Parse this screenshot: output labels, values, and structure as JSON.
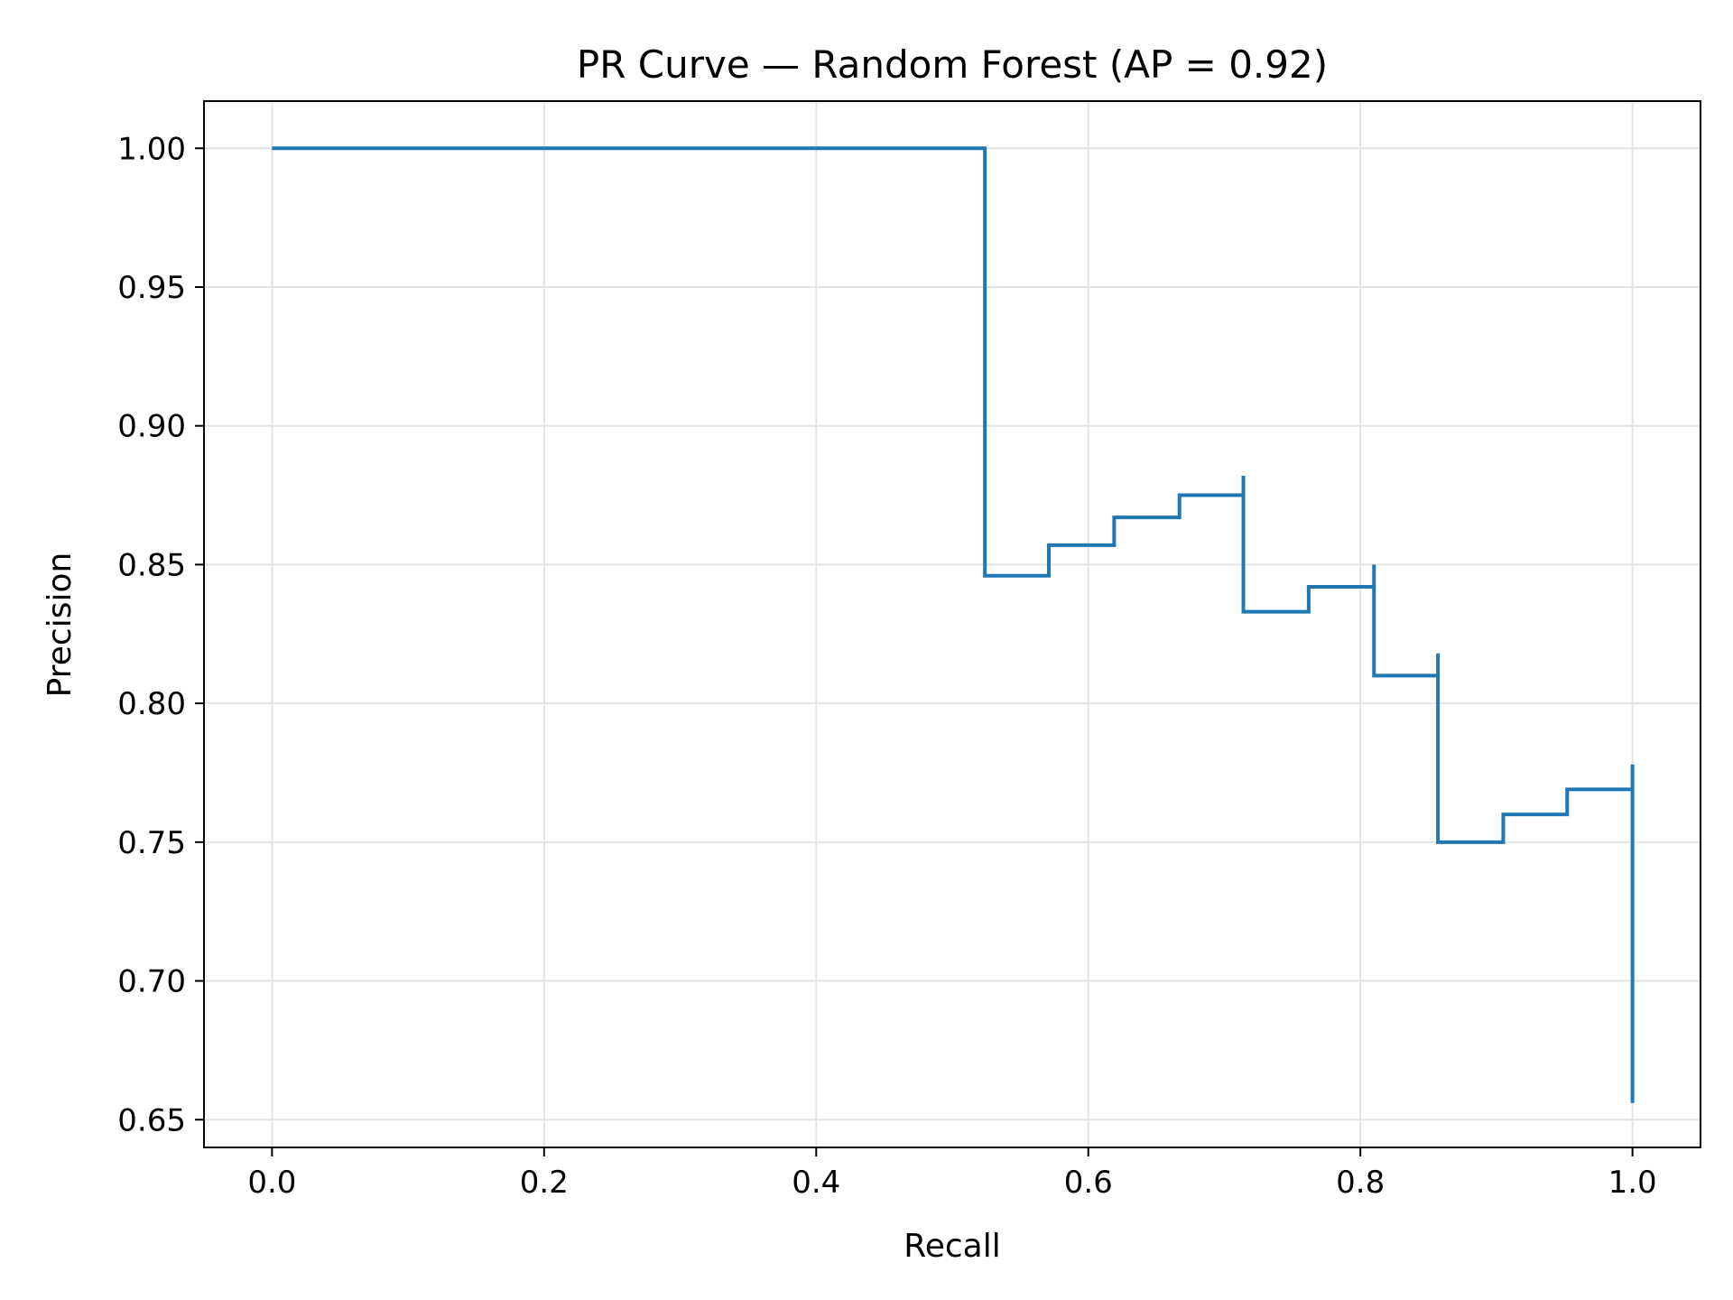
{
  "chart_data": {
    "type": "line",
    "step": "post",
    "title": "PR Curve — Random Forest (AP = 0.92)",
    "xlabel": "Recall",
    "ylabel": "Precision",
    "xlim": [
      -0.05,
      1.05
    ],
    "ylim": [
      0.64,
      1.017
    ],
    "xticks": [
      0.0,
      0.2,
      0.4,
      0.6,
      0.8,
      1.0
    ],
    "xtick_labels": [
      "0.0",
      "0.2",
      "0.4",
      "0.6",
      "0.8",
      "1.0"
    ],
    "yticks": [
      0.65,
      0.7,
      0.75,
      0.8,
      0.85,
      0.9,
      0.95,
      1.0
    ],
    "ytick_labels": [
      "0.65",
      "0.70",
      "0.75",
      "0.80",
      "0.85",
      "0.90",
      "0.95",
      "1.00"
    ],
    "grid": true,
    "line_color": "#1f77b4",
    "series": [
      {
        "recall": [
          0.0,
          0.524,
          0.524,
          0.571,
          0.619,
          0.667,
          0.714,
          0.714,
          0.762,
          0.81,
          0.81,
          0.857,
          0.857,
          0.905,
          0.952,
          1.0,
          1.0
        ],
        "precision": [
          1.0,
          1.0,
          0.846,
          0.857,
          0.867,
          0.875,
          0.882,
          0.833,
          0.842,
          0.85,
          0.81,
          0.818,
          0.75,
          0.76,
          0.769,
          0.778,
          0.656
        ]
      }
    ]
  }
}
